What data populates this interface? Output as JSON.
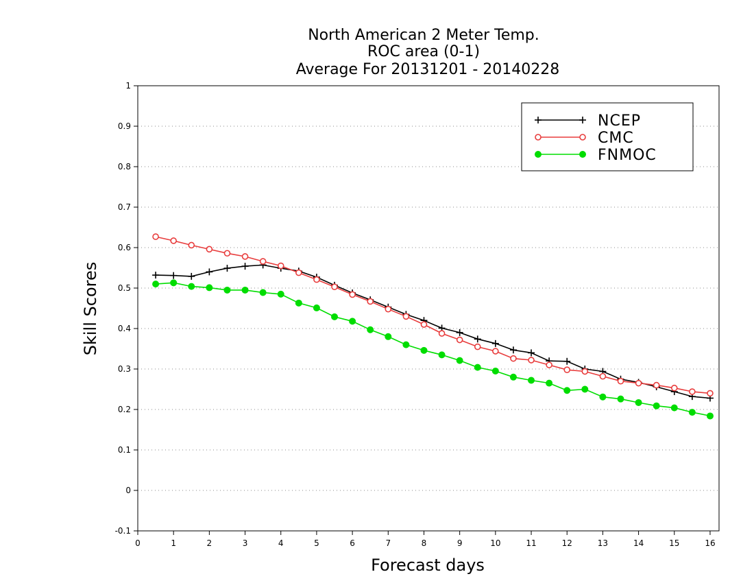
{
  "chart_data": {
    "type": "line",
    "title_lines": [
      "North American 2 Meter Temp.",
      "ROC area (0-1)",
      "Average For 20131201 - 20140228"
    ],
    "xlabel": "Forecast days",
    "ylabel": "Skill Scores",
    "xlim": [
      0,
      16.25
    ],
    "ylim": [
      -0.1,
      1
    ],
    "xticks": [
      0,
      1,
      2,
      3,
      4,
      5,
      6,
      7,
      8,
      9,
      10,
      11,
      12,
      13,
      14,
      15,
      16
    ],
    "yticks": [
      -0.1,
      0,
      0.1,
      0.2,
      0.3,
      0.4,
      0.5,
      0.6,
      0.7,
      0.8,
      0.9,
      1
    ],
    "ytick_labels": [
      "-0.1",
      "0",
      "0.1",
      "0.2",
      "0.3",
      "0.4",
      "0.5",
      "0.6",
      "0.7",
      "0.8",
      "0.9",
      "1"
    ],
    "grid": "horizontal dotted",
    "legend_position": "top-right",
    "x": [
      0.5,
      1,
      1.5,
      2,
      2.5,
      3,
      3.5,
      4,
      4.5,
      5,
      5.5,
      6,
      6.5,
      7,
      7.5,
      8,
      8.5,
      9,
      9.5,
      10,
      10.5,
      11,
      11.5,
      12,
      12.5,
      13,
      13.5,
      14,
      14.5,
      15,
      15.5,
      16
    ],
    "series": [
      {
        "name": "NCEP",
        "color": "#000000",
        "marker": "plus",
        "values": [
          0.532,
          0.531,
          0.529,
          0.54,
          0.549,
          0.554,
          0.557,
          0.549,
          0.542,
          0.527,
          0.507,
          0.488,
          0.471,
          0.453,
          0.435,
          0.42,
          0.401,
          0.39,
          0.374,
          0.363,
          0.347,
          0.34,
          0.32,
          0.319,
          0.3,
          0.294,
          0.275,
          0.267,
          0.256,
          0.244,
          0.232,
          0.228
        ]
      },
      {
        "name": "CMC",
        "color": "#e83c3c",
        "marker": "open-circle",
        "values": [
          0.627,
          0.617,
          0.606,
          0.596,
          0.586,
          0.578,
          0.566,
          0.555,
          0.538,
          0.521,
          0.503,
          0.484,
          0.467,
          0.448,
          0.43,
          0.41,
          0.388,
          0.372,
          0.355,
          0.344,
          0.326,
          0.322,
          0.31,
          0.298,
          0.294,
          0.282,
          0.27,
          0.265,
          0.26,
          0.253,
          0.244,
          0.24
        ]
      },
      {
        "name": "FNMOC",
        "color": "#00dd00",
        "marker": "filled-circle",
        "values": [
          0.51,
          0.513,
          0.504,
          0.501,
          0.495,
          0.495,
          0.489,
          0.485,
          0.463,
          0.451,
          0.429,
          0.418,
          0.397,
          0.38,
          0.36,
          0.346,
          0.335,
          0.321,
          0.304,
          0.295,
          0.28,
          0.272,
          0.265,
          0.247,
          0.25,
          0.231,
          0.226,
          0.217,
          0.209,
          0.204,
          0.193,
          0.184
        ]
      }
    ]
  }
}
